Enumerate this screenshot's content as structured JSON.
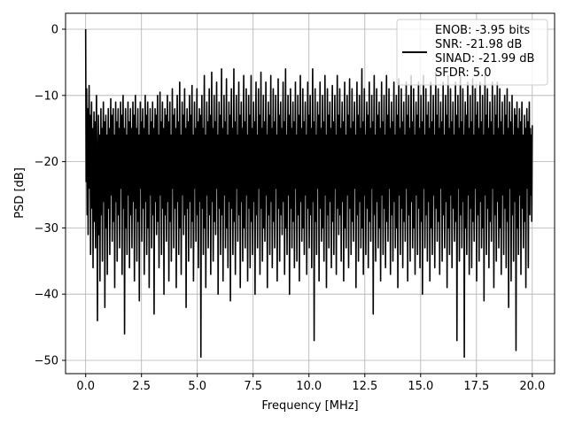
{
  "chart_data": {
    "type": "line",
    "title": "",
    "xlabel": "Frequency [MHz]",
    "ylabel": "PSD [dB]",
    "xlim": [
      -0.9,
      21.0
    ],
    "ylim": [
      -52.0,
      2.4
    ],
    "grid": true,
    "legend_position": "top-right",
    "x_ticks": [
      0.0,
      2.5,
      5.0,
      7.5,
      10.0,
      12.5,
      15.0,
      17.5,
      20.0
    ],
    "x_tick_labels": [
      "0.0",
      "2.5",
      "5.0",
      "7.5",
      "10.0",
      "12.5",
      "15.0",
      "17.5",
      "20.0"
    ],
    "y_ticks": [
      0,
      -10,
      -20,
      -30,
      -40,
      -50
    ],
    "y_tick_labels": [
      "0",
      "−10",
      "−20",
      "−30",
      "−40",
      "−50"
    ],
    "line_color": "#000000",
    "legend": {
      "lines": [
        "ENOB: -3.95 bits",
        "SNR: -21.98 dB",
        "SINAD: -21.99 dB",
        "SFDR: 5.0"
      ]
    },
    "series": [
      {
        "x_start": 0.0,
        "x_end": 20.0,
        "values": [
          0.0,
          -23,
          -9,
          -28,
          -12,
          -31,
          -16,
          -8.5,
          -24,
          -13,
          -34,
          -18,
          -11,
          -27,
          -15,
          -36,
          -19,
          -12.5,
          -29,
          -14,
          -33,
          -17,
          -10,
          -25,
          -44,
          -20,
          -13,
          -31,
          -16,
          -38,
          -21,
          -12,
          -28,
          -15,
          -35,
          -18,
          -11,
          -26,
          -14,
          -42,
          -19,
          -13,
          -30,
          -16,
          -37,
          -20,
          -12,
          -27,
          -15,
          -34,
          -21,
          -10.5,
          -25,
          -13,
          -32,
          -18,
          -12,
          -29,
          -16,
          -39,
          -20,
          -11,
          -26,
          -14,
          -35,
          -17,
          -12,
          -28,
          -15,
          -33,
          -19,
          -11,
          -24,
          -13,
          -37,
          -18,
          -10,
          -27,
          -15,
          -46,
          -20,
          -12,
          -30,
          -16,
          -34,
          -19,
          -11,
          -25,
          -14,
          -36,
          -21,
          -12,
          -28,
          -15,
          -33,
          -18,
          -11,
          -26,
          -13,
          -38,
          -20,
          -10,
          -27,
          -15,
          -35,
          -19,
          -12,
          -29,
          -16,
          -41,
          -21,
          -11,
          -24,
          -14,
          -32,
          -17,
          -12,
          -27,
          -15,
          -37,
          -20,
          -10,
          -26,
          -13,
          -34,
          -18,
          -11,
          -30,
          -16,
          -39,
          -21,
          -12,
          -25,
          -14,
          -33,
          -19,
          -11,
          -28,
          -15,
          -43,
          -20,
          -12,
          -26,
          -13,
          -31,
          -17,
          -10,
          -29,
          -16,
          -36,
          -19,
          -9.5,
          -25,
          -14,
          -34,
          -18,
          -11,
          -27,
          -15,
          -40,
          -20,
          -12,
          -28,
          -13,
          -32,
          -19,
          -10,
          -26,
          -14,
          -38,
          -18,
          -11,
          -29,
          -16,
          -35,
          -21,
          -9,
          -24,
          -13,
          -33,
          -17,
          -12,
          -27,
          -15,
          -39,
          -20,
          -10,
          -26,
          -14,
          -34,
          -18,
          -8,
          -30,
          -16,
          -37,
          -21,
          -11,
          -25,
          -13,
          -31,
          -19,
          -9,
          -28,
          -15,
          -42,
          -20,
          -12,
          -27,
          -14,
          -35,
          -18,
          -10,
          -26,
          -13,
          -33,
          -17,
          -8.5,
          -29,
          -16,
          -38,
          -21,
          -11,
          -24,
          -15,
          -32,
          -19,
          -9,
          -28,
          -14,
          -36,
          -20,
          -12,
          -26,
          -13,
          -49.5,
          -18,
          -10,
          -27,
          -15,
          -34,
          -17,
          -7,
          -30,
          -16,
          -39,
          -21,
          -11,
          -25,
          -14,
          -33,
          -19,
          -9,
          -28,
          -13,
          -37,
          -20,
          -6.5,
          -26,
          -15,
          -35,
          -18,
          -10,
          -29,
          -14,
          -31,
          -17,
          -8,
          -24,
          -16,
          -40,
          -21,
          -11,
          -27,
          -13,
          -34,
          -19,
          -6,
          -28,
          -15,
          -38,
          -20,
          -10,
          -25,
          -14,
          -33,
          -18,
          -7.5,
          -30,
          -16,
          -36,
          -21,
          -11,
          -26,
          -13,
          -41,
          -17,
          -9,
          -27,
          -15,
          -34,
          -19,
          -6,
          -29,
          -14,
          -37,
          -20,
          -10,
          -24,
          -16,
          -32,
          -18,
          -8,
          -28,
          -13,
          -39,
          -21,
          -11,
          -26,
          -15,
          -35,
          -17,
          -7,
          -30,
          -14,
          -33,
          -19,
          -9,
          -25,
          -16,
          -38,
          -20,
          -10,
          -27,
          -13,
          -36,
          -18,
          -7,
          -29,
          -15,
          -34,
          -21,
          -11,
          -26,
          -14,
          -40,
          -17,
          -8,
          -28,
          -16,
          -33,
          -19,
          -9,
          -24,
          -13,
          -37,
          -20,
          -6.5,
          -27,
          -15,
          -35,
          -18,
          -10,
          -30,
          -14,
          -32,
          -21,
          -8,
          -25,
          -16,
          -39,
          -17,
          -11,
          -28,
          -13,
          -34,
          -19,
          -7,
          -26,
          -15,
          -36,
          -20,
          -9,
          -29,
          -14,
          -33,
          -18,
          -10,
          -24,
          -16,
          -38,
          -21,
          -7.5,
          -27,
          -13,
          -35,
          -17,
          -11,
          -28,
          -15,
          -31,
          -19,
          -8,
          -26,
          -14,
          -37,
          -20,
          -6,
          -30,
          -16,
          -34,
          -18,
          -10,
          -25,
          -13,
          -40,
          -21,
          -9,
          -27,
          -15,
          -33,
          -17,
          -11,
          -29,
          -14,
          -36,
          -19,
          -8,
          -24,
          -16,
          -35,
          -20,
          -10,
          -28,
          -13,
          -38,
          -18,
          -7,
          -26,
          -15,
          -32,
          -21,
          -9,
          -30,
          -14,
          -34,
          -17,
          -11,
          -25,
          -16,
          -37,
          -19,
          -8,
          -27,
          -13,
          -33,
          -20,
          -10,
          -28,
          -15,
          -36,
          -18,
          -6,
          -26,
          -14,
          -47,
          -21,
          -9,
          -29,
          -16,
          -34,
          -17,
          -11,
          -24,
          -13,
          -38,
          -19,
          -8,
          -27,
          -15,
          -32,
          -20,
          -10,
          -30,
          -14,
          -35,
          -18,
          -7,
          -25,
          -16,
          -39,
          -21,
          -9,
          -28,
          -13,
          -33,
          -17,
          -11,
          -26,
          -15,
          -36,
          -19,
          -8.5,
          -29,
          -14,
          -34,
          -20,
          -10,
          -24,
          -16,
          -37,
          -18,
          -7,
          -27,
          -13,
          -31,
          -21,
          -9,
          -28,
          -15,
          -35,
          -17,
          -11,
          -26,
          -14,
          -38,
          -19,
          -8,
          -30,
          -16,
          -33,
          -20,
          -10,
          -25,
          -13,
          -36,
          -18,
          -7.5,
          -27,
          -15,
          -34,
          -21,
          -9,
          -29,
          -14,
          -32,
          -17,
          -11,
          -24,
          -16,
          -39,
          -19,
          -8,
          -28,
          -13,
          -35,
          -20,
          -10,
          -26,
          -15,
          -33,
          -18,
          -6,
          -30,
          -14,
          -37,
          -21,
          -9,
          -25,
          -16,
          -34,
          -17,
          -11,
          -27,
          -13,
          -36,
          -19,
          -8,
          -29,
          -15,
          -32,
          -20,
          -10,
          -24,
          -14,
          -43,
          -18,
          -7,
          -28,
          -16,
          -35,
          -21,
          -9,
          -26,
          -13,
          -33,
          -17,
          -11,
          -30,
          -15,
          -38,
          -19,
          -8,
          -25,
          -14,
          -34,
          -20,
          -10,
          -27,
          -16,
          -36,
          -18,
          -7,
          -29,
          -13,
          -32,
          -21,
          -9,
          -24,
          -15,
          -37,
          -17,
          -11,
          -28,
          -14,
          -35,
          -19,
          -8,
          -26,
          -16,
          -33,
          -20,
          -10,
          -30,
          -13,
          -39,
          -18,
          -7.5,
          -25,
          -15,
          -34,
          -21,
          -9,
          -27,
          -14,
          -36,
          -17,
          -11,
          -29,
          -16,
          -32,
          -19,
          -8,
          -24,
          -13,
          -38,
          -20,
          -10,
          -28,
          -15,
          -35,
          -18,
          -7,
          -26,
          -14,
          -33,
          -21,
          -9,
          -30,
          -16,
          -37,
          -17,
          -11,
          -25,
          -13,
          -34,
          -19,
          -8,
          -27,
          -15,
          -36,
          -20,
          -10,
          -29,
          -14,
          -40,
          -18,
          -7,
          -24,
          -16,
          -33,
          -21,
          -9,
          -28,
          -13,
          -35,
          -17,
          -11,
          -26,
          -15,
          -38,
          -19,
          -8,
          -30,
          -14,
          -34,
          -20,
          -10,
          -25,
          -16,
          -36,
          -18,
          -6.5,
          -27,
          -13,
          -32,
          -21,
          -9,
          -29,
          -15,
          -37,
          -17,
          -11,
          -24,
          -14,
          -35,
          -19,
          -8,
          -28,
          -16,
          -33,
          -20,
          -10,
          -26,
          -13,
          -39,
          -18,
          -7,
          -30,
          -15,
          -34,
          -21,
          -9,
          -25,
          -14,
          -36,
          -17,
          -11,
          -27,
          -16,
          -32,
          -19,
          -8,
          -29,
          -13,
          -47,
          -20,
          -10,
          -24,
          -15,
          -35,
          -18,
          -7,
          -28,
          -14,
          -33,
          -21,
          -9,
          -26,
          -16,
          -49.5,
          -17,
          -11,
          -30,
          -13,
          -34,
          -19,
          -8,
          -25,
          -15,
          -37,
          -20,
          -10,
          -27,
          -14,
          -36,
          -18,
          -7.5,
          -29,
          -16,
          -32,
          -21,
          -9,
          -24,
          -13,
          -38,
          -17,
          -11,
          -28,
          -15,
          -35,
          -19,
          -8,
          -26,
          -14,
          -33,
          -20,
          -10,
          -30,
          -16,
          -41,
          -18,
          -7,
          -25,
          -13,
          -34,
          -21,
          -9,
          -27,
          -15,
          -36,
          -17,
          -11,
          -29,
          -14,
          -32,
          -19,
          -8,
          -24,
          -16,
          -39,
          -20,
          -10,
          -28,
          -13,
          -35,
          -18,
          -8,
          -26,
          -15,
          -33,
          -21,
          -9,
          -30,
          -14,
          -37,
          -17,
          -11,
          -25,
          -16,
          -34,
          -19,
          -10,
          -27,
          -13,
          -36,
          -20,
          -9,
          -29,
          -15,
          -42,
          -18,
          -11,
          -24,
          -14,
          -38,
          -21,
          -10,
          -28,
          -16,
          -35,
          -17,
          -12,
          -26,
          -13,
          -48.5,
          -19,
          -11,
          -30,
          -15,
          -34,
          -20,
          -12,
          -25,
          -14,
          -37,
          -18,
          -11,
          -27,
          -16,
          -33,
          -21,
          -13,
          -29,
          -15,
          -39,
          -17,
          -12,
          -24,
          -14,
          -36,
          -19,
          -11,
          -28,
          -15,
          -25,
          -16,
          -29,
          -14.5
        ]
      }
    ]
  }
}
